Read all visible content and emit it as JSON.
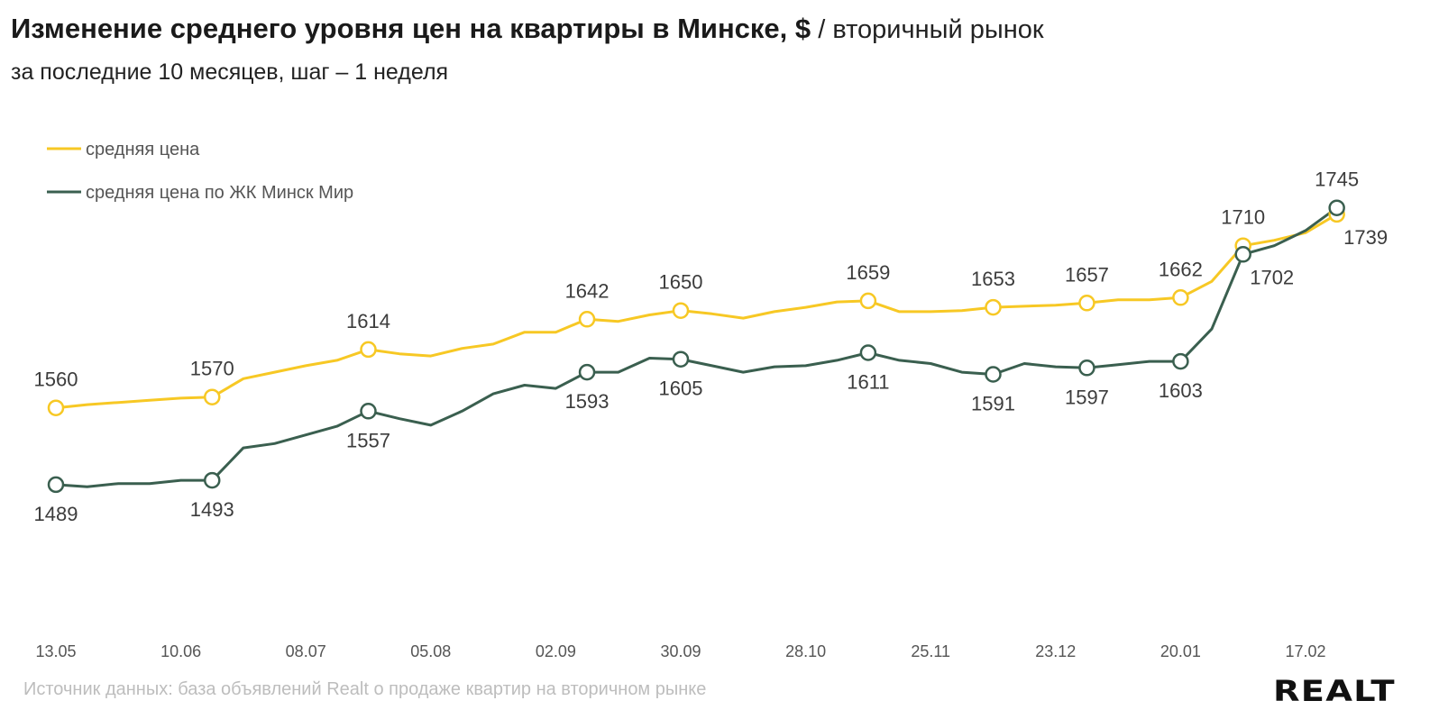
{
  "header": {
    "title_bold": "Изменение среднего уровня цен на квартиры в Минске, $",
    "title_sep": " / ",
    "title_light": "вторичный рынок",
    "subtitle": "за последние 10 месяцев, шаг – 1 неделя"
  },
  "footer": {
    "source": "Источник данных: база объявлений Realt о продаже квартир на вторичном рынке",
    "logo": "REALT"
  },
  "chart_data": {
    "type": "line",
    "title": "Изменение среднего уровня цен на квартиры в Минске, $ / вторичный рынок",
    "xlabel": "",
    "ylabel": "",
    "x_ticks": [
      "13.05",
      "10.06",
      "08.07",
      "05.08",
      "02.09",
      "30.09",
      "28.10",
      "25.11",
      "23.12",
      "20.01",
      "17.02"
    ],
    "x_tick_every_n_points": 4,
    "grid": false,
    "legend_position": "top-left",
    "series": [
      {
        "name": "средняя цена",
        "color": "#f7c824",
        "values": [
          1560,
          1563,
          1565,
          1567,
          1569,
          1570,
          1587,
          1593,
          1599,
          1604,
          1614,
          1610,
          1608,
          1615,
          1619,
          1630,
          1630,
          1642,
          1640,
          1646,
          1650,
          1647,
          1643,
          1649,
          1653,
          1658,
          1659,
          1649,
          1649,
          1650,
          1653,
          1654,
          1655,
          1657,
          1660,
          1660,
          1662,
          1677,
          1710,
          1715,
          1722,
          1739
        ],
        "labels": [
          {
            "index": 0,
            "text": "1560",
            "pos": "above"
          },
          {
            "index": 5,
            "text": "1570",
            "pos": "above"
          },
          {
            "index": 10,
            "text": "1614",
            "pos": "above"
          },
          {
            "index": 17,
            "text": "1642",
            "pos": "above"
          },
          {
            "index": 20,
            "text": "1650",
            "pos": "above"
          },
          {
            "index": 26,
            "text": "1659",
            "pos": "above"
          },
          {
            "index": 30,
            "text": "1653",
            "pos": "above"
          },
          {
            "index": 33,
            "text": "1657",
            "pos": "above"
          },
          {
            "index": 36,
            "text": "1662",
            "pos": "above"
          },
          {
            "index": 38,
            "text": "1710",
            "pos": "above"
          },
          {
            "index": 41,
            "text": "1739",
            "pos": "below-right"
          }
        ]
      },
      {
        "name": "средняя цена по ЖК Минск Мир",
        "color": "#3a5f4f",
        "values": [
          1489,
          1487,
          1490,
          1490,
          1493,
          1493,
          1523,
          1527,
          1535,
          1543,
          1557,
          1550,
          1544,
          1557,
          1573,
          1581,
          1578,
          1593,
          1593,
          1606,
          1605,
          1599,
          1593,
          1598,
          1599,
          1604,
          1611,
          1604,
          1601,
          1593,
          1591,
          1601,
          1598,
          1597,
          1600,
          1603,
          1603,
          1633,
          1702,
          1710,
          1724,
          1745
        ],
        "labels": [
          {
            "index": 0,
            "text": "1489",
            "pos": "below"
          },
          {
            "index": 5,
            "text": "1493",
            "pos": "below"
          },
          {
            "index": 10,
            "text": "1557",
            "pos": "below"
          },
          {
            "index": 17,
            "text": "1593",
            "pos": "below"
          },
          {
            "index": 20,
            "text": "1605",
            "pos": "below"
          },
          {
            "index": 26,
            "text": "1611",
            "pos": "below"
          },
          {
            "index": 30,
            "text": "1591",
            "pos": "below"
          },
          {
            "index": 33,
            "text": "1597",
            "pos": "below"
          },
          {
            "index": 36,
            "text": "1603",
            "pos": "below"
          },
          {
            "index": 38,
            "text": "1702",
            "pos": "below-right"
          },
          {
            "index": 41,
            "text": "1745",
            "pos": "above"
          }
        ]
      }
    ]
  }
}
